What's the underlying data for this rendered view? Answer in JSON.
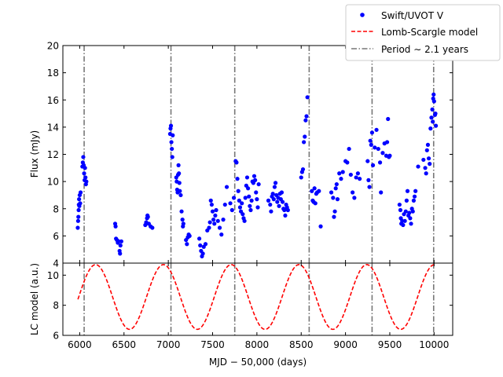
{
  "chart_data": [
    {
      "type": "scatter",
      "panel": "top",
      "ylabel": "Flux  (mJy)",
      "xlim": [
        5810,
        10210
      ],
      "ylim": [
        4,
        20
      ],
      "yticks": [
        4,
        6,
        8,
        10,
        12,
        14,
        16,
        18,
        20
      ],
      "xticks": [
        6000,
        6500,
        7000,
        7500,
        8000,
        8500,
        9000,
        9500,
        10000
      ],
      "series": [
        {
          "name": "Swift/UVOT V",
          "color": "#0000ff",
          "points": [
            [
              5978,
              6.6
            ],
            [
              5982,
              7.1
            ],
            [
              5985,
              7.4
            ],
            [
              5988,
              7.9
            ],
            [
              5990,
              8.3
            ],
            [
              5993,
              8.7
            ],
            [
              5996,
              8.2
            ],
            [
              6000,
              9.0
            ],
            [
              6005,
              8.4
            ],
            [
              6010,
              9.2
            ],
            [
              6030,
              11.1
            ],
            [
              6035,
              11.4
            ],
            [
              6040,
              11.8
            ],
            [
              6045,
              11.2
            ],
            [
              6050,
              10.6
            ],
            [
              6055,
              10.1
            ],
            [
              6060,
              11.0
            ],
            [
              6065,
              10.3
            ],
            [
              6070,
              9.8
            ],
            [
              6075,
              10.0
            ],
            [
              6400,
              6.9
            ],
            [
              6405,
              6.7
            ],
            [
              6410,
              5.8
            ],
            [
              6420,
              5.7
            ],
            [
              6430,
              5.5
            ],
            [
              6440,
              5.6
            ],
            [
              6450,
              4.9
            ],
            [
              6455,
              4.7
            ],
            [
              6460,
              5.3
            ],
            [
              6470,
              5.6
            ],
            [
              6740,
              6.8
            ],
            [
              6750,
              7.0
            ],
            [
              6760,
              7.3
            ],
            [
              6765,
              7.5
            ],
            [
              6770,
              7.4
            ],
            [
              6780,
              6.9
            ],
            [
              6800,
              6.7
            ],
            [
              6820,
              6.6
            ],
            [
              7020,
              13.5
            ],
            [
              7025,
              13.9
            ],
            [
              7030,
              14.1
            ],
            [
              7035,
              12.9
            ],
            [
              7040,
              12.4
            ],
            [
              7045,
              11.8
            ],
            [
              7050,
              13.4
            ],
            [
              7090,
              10.3
            ],
            [
              7095,
              10.0
            ],
            [
              7100,
              9.4
            ],
            [
              7105,
              9.2
            ],
            [
              7110,
              10.5
            ],
            [
              7115,
              11.2
            ],
            [
              7120,
              10.6
            ],
            [
              7125,
              9.9
            ],
            [
              7130,
              9.3
            ],
            [
              7140,
              9.0
            ],
            [
              7150,
              7.8
            ],
            [
              7160,
              7.2
            ],
            [
              7165,
              6.7
            ],
            [
              7170,
              6.9
            ],
            [
              7200,
              5.7
            ],
            [
              7210,
              5.4
            ],
            [
              7220,
              5.9
            ],
            [
              7230,
              6.1
            ],
            [
              7240,
              6.0
            ],
            [
              7350,
              5.8
            ],
            [
              7360,
              5.3
            ],
            [
              7370,
              4.9
            ],
            [
              7380,
              4.5
            ],
            [
              7390,
              4.7
            ],
            [
              7400,
              5.2
            ],
            [
              7420,
              5.4
            ],
            [
              7440,
              6.4
            ],
            [
              7460,
              6.6
            ],
            [
              7470,
              7.0
            ],
            [
              7480,
              8.6
            ],
            [
              7490,
              8.3
            ],
            [
              7500,
              7.8
            ],
            [
              7510,
              7.2
            ],
            [
              7520,
              6.9
            ],
            [
              7530,
              7.5
            ],
            [
              7540,
              7.9
            ],
            [
              7560,
              7.1
            ],
            [
              7580,
              6.6
            ],
            [
              7600,
              6.1
            ],
            [
              7620,
              7.2
            ],
            [
              7640,
              8.3
            ],
            [
              7660,
              9.6
            ],
            [
              7700,
              8.4
            ],
            [
              7720,
              7.9
            ],
            [
              7740,
              8.8
            ],
            [
              7760,
              11.5
            ],
            [
              7770,
              11.4
            ],
            [
              7780,
              10.2
            ],
            [
              7790,
              9.3
            ],
            [
              7800,
              8.6
            ],
            [
              7810,
              8.1
            ],
            [
              7820,
              7.8
            ],
            [
              7830,
              8.4
            ],
            [
              7840,
              7.6
            ],
            [
              7850,
              7.3
            ],
            [
              7860,
              7.1
            ],
            [
              7870,
              8.8
            ],
            [
              7880,
              9.7
            ],
            [
              7890,
              10.3
            ],
            [
              7900,
              9.5
            ],
            [
              7910,
              8.9
            ],
            [
              7920,
              8.2
            ],
            [
              7930,
              7.9
            ],
            [
              7940,
              8.6
            ],
            [
              7950,
              10.0
            ],
            [
              7960,
              9.9
            ],
            [
              7970,
              10.4
            ],
            [
              7980,
              10.1
            ],
            [
              7990,
              9.2
            ],
            [
              8000,
              8.7
            ],
            [
              8010,
              8.1
            ],
            [
              8020,
              9.8
            ],
            [
              8130,
              8.6
            ],
            [
              8150,
              8.3
            ],
            [
              8160,
              7.8
            ],
            [
              8170,
              8.9
            ],
            [
              8180,
              9.1
            ],
            [
              8190,
              8.7
            ],
            [
              8200,
              9.6
            ],
            [
              8210,
              9.9
            ],
            [
              8220,
              9.0
            ],
            [
              8230,
              8.5
            ],
            [
              8240,
              8.8
            ],
            [
              8250,
              8.2
            ],
            [
              8260,
              9.1
            ],
            [
              8270,
              8.7
            ],
            [
              8280,
              9.2
            ],
            [
              8290,
              8.5
            ],
            [
              8300,
              8.0
            ],
            [
              8310,
              7.9
            ],
            [
              8320,
              7.5
            ],
            [
              8330,
              8.3
            ],
            [
              8340,
              8.1
            ],
            [
              8350,
              7.9
            ],
            [
              8500,
              10.3
            ],
            [
              8510,
              10.7
            ],
            [
              8520,
              10.9
            ],
            [
              8530,
              12.9
            ],
            [
              8540,
              13.3
            ],
            [
              8550,
              14.5
            ],
            [
              8560,
              14.8
            ],
            [
              8570,
              16.2
            ],
            [
              8620,
              9.3
            ],
            [
              8630,
              8.6
            ],
            [
              8640,
              8.5
            ],
            [
              8650,
              9.5
            ],
            [
              8660,
              8.4
            ],
            [
              8670,
              9.1
            ],
            [
              8680,
              9.2
            ],
            [
              8700,
              9.3
            ],
            [
              8720,
              6.7
            ],
            [
              8840,
              9.2
            ],
            [
              8860,
              8.8
            ],
            [
              8870,
              7.4
            ],
            [
              8880,
              7.8
            ],
            [
              8890,
              9.5
            ],
            [
              8900,
              9.8
            ],
            [
              8910,
              8.7
            ],
            [
              8930,
              10.6
            ],
            [
              8950,
              10.2
            ],
            [
              8970,
              10.7
            ],
            [
              9000,
              11.5
            ],
            [
              9020,
              11.4
            ],
            [
              9040,
              12.4
            ],
            [
              9060,
              10.5
            ],
            [
              9080,
              9.2
            ],
            [
              9100,
              8.8
            ],
            [
              9120,
              10.3
            ],
            [
              9140,
              10.6
            ],
            [
              9160,
              10.2
            ],
            [
              9250,
              11.5
            ],
            [
              9260,
              10.1
            ],
            [
              9270,
              9.6
            ],
            [
              9280,
              13.0
            ],
            [
              9290,
              12.7
            ],
            [
              9300,
              13.6
            ],
            [
              9310,
              11.2
            ],
            [
              9330,
              12.5
            ],
            [
              9350,
              13.8
            ],
            [
              9370,
              12.4
            ],
            [
              9390,
              11.4
            ],
            [
              9400,
              9.2
            ],
            [
              9420,
              12.1
            ],
            [
              9440,
              12.8
            ],
            [
              9460,
              11.9
            ],
            [
              9470,
              12.9
            ],
            [
              9480,
              14.6
            ],
            [
              9490,
              11.8
            ],
            [
              9500,
              11.9
            ],
            [
              9610,
              8.3
            ],
            [
              9620,
              7.9
            ],
            [
              9625,
              7.3
            ],
            [
              9630,
              6.9
            ],
            [
              9640,
              7.1
            ],
            [
              9650,
              6.8
            ],
            [
              9660,
              7.6
            ],
            [
              9670,
              7.1
            ],
            [
              9680,
              7.8
            ],
            [
              9690,
              8.6
            ],
            [
              9700,
              9.3
            ],
            [
              9710,
              7.5
            ],
            [
              9720,
              7.7
            ],
            [
              9730,
              7.3
            ],
            [
              9740,
              6.9
            ],
            [
              9750,
              8.0
            ],
            [
              9760,
              7.8
            ],
            [
              9770,
              8.6
            ],
            [
              9780,
              8.9
            ],
            [
              9790,
              9.3
            ],
            [
              9820,
              11.1
            ],
            [
              9880,
              11.6
            ],
            [
              9900,
              11.0
            ],
            [
              9910,
              10.6
            ],
            [
              9920,
              12.3
            ],
            [
              9930,
              12.7
            ],
            [
              9940,
              11.7
            ],
            [
              9950,
              11.3
            ],
            [
              9960,
              13.9
            ],
            [
              9970,
              14.7
            ],
            [
              9980,
              15.3
            ],
            [
              9985,
              14.4
            ],
            [
              9990,
              16.1
            ],
            [
              9995,
              16.4
            ],
            [
              10000,
              15.9
            ],
            [
              10010,
              14.9
            ],
            [
              10015,
              15.0
            ],
            [
              10020,
              14.1
            ]
          ]
        }
      ],
      "vlines": [
        6050,
        7030,
        7750,
        8590,
        9300,
        9995
      ]
    },
    {
      "type": "line",
      "panel": "bottom",
      "ylabel": "LC model (a.u.)",
      "xlabel": "MJD − 50,000 (days)",
      "xlim": [
        5810,
        10210
      ],
      "ylim": [
        6,
        10.8
      ],
      "yticks": [
        6,
        8,
        10
      ],
      "xticks": [
        6000,
        6500,
        7000,
        7500,
        8000,
        8500,
        9000,
        9500,
        10000
      ],
      "model": {
        "name": "Lomb-Scargle model",
        "color": "#ff0000",
        "x_start": 5980,
        "x_end": 10000,
        "mean": 8.55,
        "amplitude": 2.15,
        "period": 765,
        "peak_x": 6180
      },
      "vlines": [
        6050,
        7030,
        7750,
        8590,
        9300,
        9995
      ]
    }
  ],
  "legend": {
    "position": "top-right",
    "entries": [
      {
        "label": "Swift/UVOT V",
        "style": "dot",
        "color": "#0000ff"
      },
      {
        "label": "Lomb-Scargle model",
        "style": "dashed",
        "color": "#ff0000"
      },
      {
        "label": "Period ∼ 2.1 years",
        "style": "dashdot",
        "color": "#777777"
      }
    ]
  },
  "colors": {
    "vline": "#777777",
    "axis": "#000000"
  }
}
